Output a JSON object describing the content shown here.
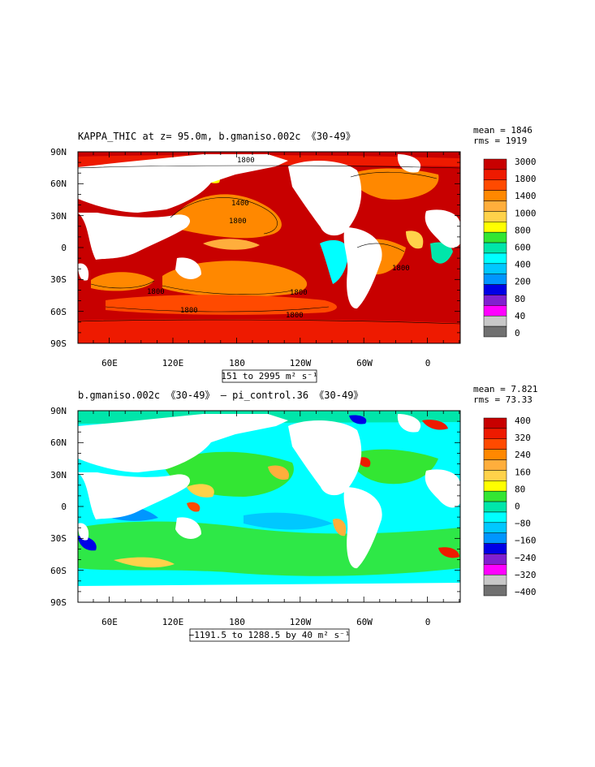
{
  "chart_data": [
    {
      "type": "heatmap",
      "title": "KAPPA_THIC at z=  95.0m, b.gmaniso.002c 《30-49》",
      "stats": [
        "mean = 1846",
        "rms = 1919"
      ],
      "range_label": "151 to 2995 m² s⁻¹",
      "x_ticks": [
        "60E",
        "120E",
        "180",
        "120W",
        "60W",
        "0"
      ],
      "y_ticks": [
        "90N",
        "60N",
        "30N",
        "0",
        "30S",
        "60S",
        "90S"
      ],
      "legend": {
        "placement": "right",
        "labels": [
          "3000",
          "1800",
          "1400",
          "1000",
          "800",
          "600",
          "400",
          "200",
          "80",
          "40",
          "0"
        ],
        "colors": [
          "#c80000",
          "#ee1a00",
          "#ff4a00",
          "#ff8800",
          "#ffae3c",
          "#ffd24a",
          "#ffff00",
          "#33e633",
          "#00e6aa",
          "#00ffff",
          "#00c8ff",
          "#0096ff",
          "#0000e6",
          "#8020d0",
          "#ff00ff",
          "#c8c8c8",
          "#707070"
        ]
      },
      "contour_labels": [
        "1800",
        "1400",
        "1800",
        "1800",
        "1800",
        "1800",
        "1800",
        "1800"
      ]
    },
    {
      "type": "heatmap",
      "title": "b.gmaniso.002c 《30-49》 – pi_control.36 《30-49》",
      "stats": [
        "mean = 7.821",
        "rms = 73.33"
      ],
      "range_label": "−1191.5 to 1288.5 by 40 m² s⁻¹",
      "x_ticks": [
        "60E",
        "120E",
        "180",
        "120W",
        "60W",
        "0"
      ],
      "y_ticks": [
        "90N",
        "60N",
        "30N",
        "0",
        "30S",
        "60S",
        "90S"
      ],
      "legend": {
        "placement": "right",
        "labels": [
          "400",
          "320",
          "240",
          "160",
          "80",
          "0",
          "−80",
          "−160",
          "−240",
          "−320",
          "−400"
        ],
        "colors": [
          "#c80000",
          "#ee1a00",
          "#ff4a00",
          "#ff8800",
          "#ffae3c",
          "#ffd24a",
          "#ffff00",
          "#33e633",
          "#00e6aa",
          "#00ffff",
          "#00c8ff",
          "#0096ff",
          "#0000e6",
          "#8020d0",
          "#ff00ff",
          "#c8c8c8",
          "#707070"
        ]
      }
    }
  ]
}
